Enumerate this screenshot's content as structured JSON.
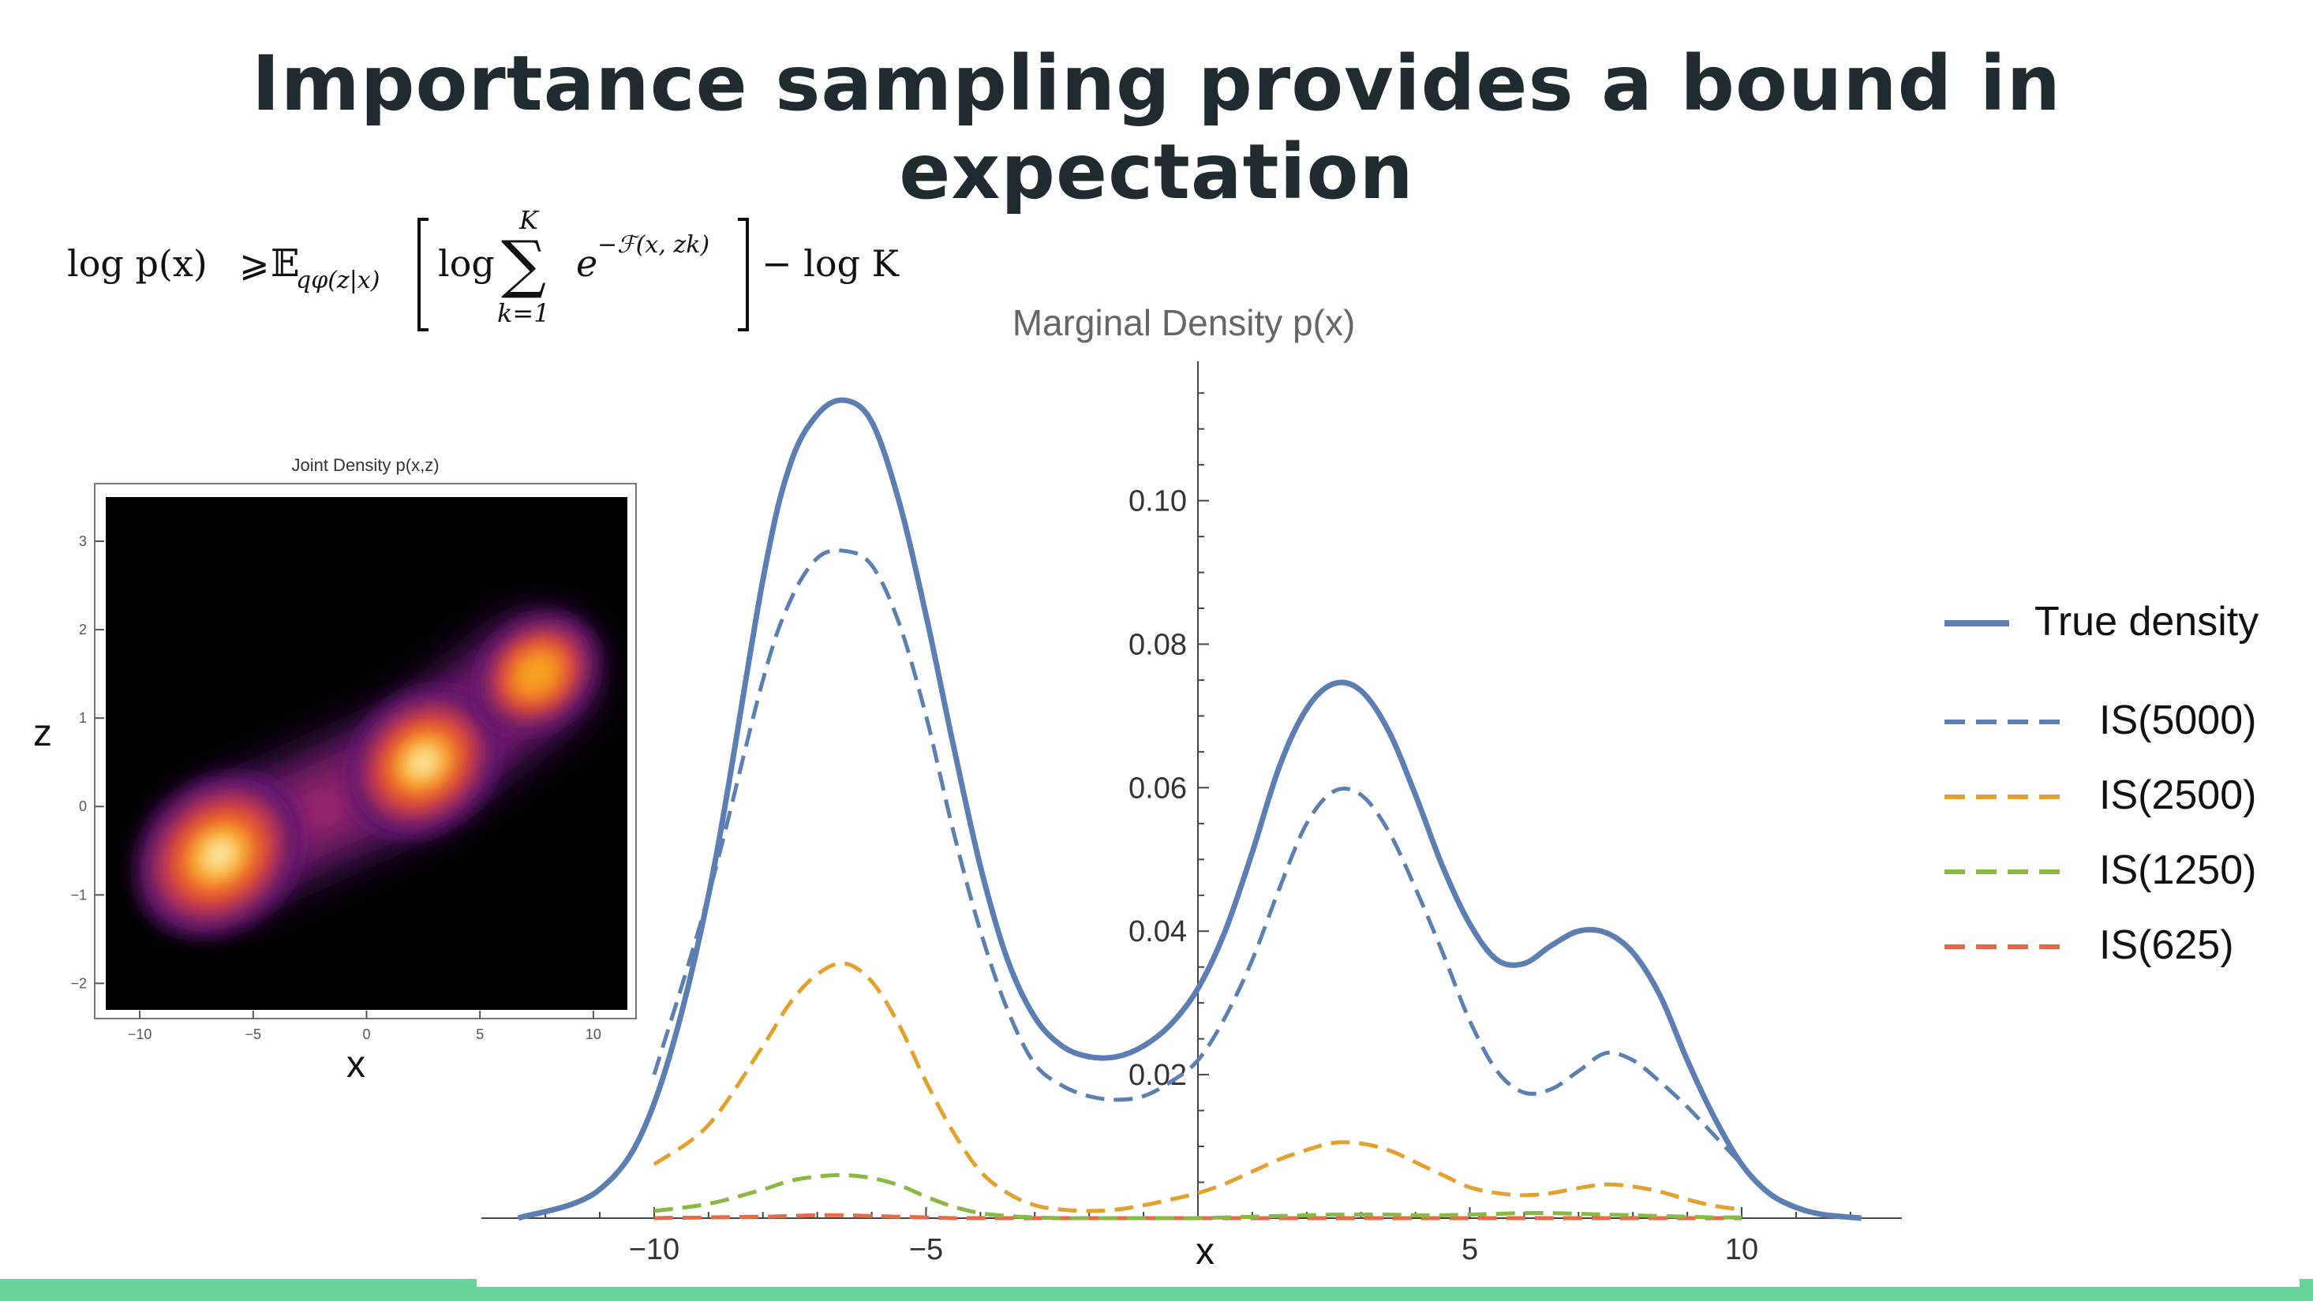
{
  "slide": {
    "title": "Importance sampling provides a bound in expectation",
    "accent_color": "#67d49a"
  },
  "formula": {
    "lhs": "log p(x)",
    "relation": "⩾",
    "expectation": "𝔼",
    "expectation_subscript": "qφ(z|x)",
    "log": "log",
    "sum_upper": "K",
    "sum_lower": "k=1",
    "exp_base": "e",
    "exp_power": "−ℱ(x, zk)",
    "minus_term": "− log K"
  },
  "chart_data": [
    {
      "type": "heatmap",
      "title": "Joint Density p(x,z)",
      "xlabel": "x",
      "ylabel": "z",
      "xlim": [
        -11.5,
        11.5
      ],
      "ylim": [
        -2.3,
        3.5
      ],
      "xticks": [
        -10,
        -5,
        0,
        5,
        10
      ],
      "yticks": [
        -2,
        -1,
        0,
        1,
        2,
        3
      ],
      "colormap": "inferno",
      "modes": [
        {
          "x": -6.5,
          "z": -0.55,
          "weight": 1.0
        },
        {
          "x": 2.5,
          "z": 0.5,
          "weight": 0.85
        },
        {
          "x": 7.5,
          "z": 1.5,
          "weight": 0.55
        }
      ]
    },
    {
      "type": "line",
      "title": "Marginal Density p(x)",
      "xlabel": "x",
      "ylabel": "",
      "xlim": [
        -12.8,
        12.8
      ],
      "ylim": [
        0,
        0.117
      ],
      "xticks": [
        -10,
        -5,
        5,
        10
      ],
      "yticks": [
        0.02,
        0.04,
        0.06,
        0.08,
        0.1
      ],
      "ytick_labels": [
        "0.02",
        "0.04",
        "0.06",
        "0.08",
        "0.10"
      ],
      "x": [
        -12.5,
        -11,
        -10,
        -9,
        -8,
        -7.5,
        -7,
        -6.5,
        -6,
        -5.5,
        -5,
        -4.5,
        -4,
        -3.5,
        -3,
        -2.5,
        -2,
        -1.5,
        -1,
        -0.5,
        0,
        0.5,
        1,
        1.5,
        2,
        2.5,
        3,
        3.5,
        4,
        4.5,
        5,
        5.5,
        6,
        6.5,
        7,
        7.5,
        8,
        8.5,
        9,
        9.5,
        10,
        10.5,
        11,
        11.5,
        12.2
      ],
      "series": [
        {
          "name": "True density",
          "color": "#5b7fb3",
          "dash": "solid",
          "width": 7,
          "values": [
            0.0,
            0.004,
            0.016,
            0.045,
            0.089,
            0.105,
            0.112,
            0.114,
            0.111,
            0.1,
            0.084,
            0.066,
            0.049,
            0.036,
            0.028,
            0.024,
            0.0225,
            0.0225,
            0.024,
            0.027,
            0.032,
            0.04,
            0.051,
            0.063,
            0.071,
            0.0745,
            0.0735,
            0.068,
            0.059,
            0.049,
            0.041,
            0.036,
            0.0355,
            0.038,
            0.04,
            0.0398,
            0.037,
            0.031,
            0.022,
            0.014,
            0.0075,
            0.0035,
            0.0015,
            0.0005,
            0.0
          ]
        },
        {
          "name": "IS(5000)",
          "color": "#5b7fb3",
          "dash": "dashed",
          "width": 5,
          "values": [
            null,
            null,
            0.02,
            0.045,
            0.075,
            0.086,
            0.092,
            0.093,
            0.091,
            0.083,
            0.07,
            0.054,
            0.04,
            0.029,
            0.0215,
            0.0185,
            0.017,
            0.0165,
            0.017,
            0.019,
            0.022,
            0.028,
            0.036,
            0.046,
            0.055,
            0.0595,
            0.059,
            0.054,
            0.046,
            0.037,
            0.0275,
            0.0205,
            0.0175,
            0.018,
            0.0205,
            0.023,
            0.022,
            0.019,
            0.0155,
            0.0115,
            0.0075,
            null,
            null,
            null,
            null
          ]
        },
        {
          "name": "IS(2500)",
          "color": "#e4a02c",
          "dash": "dashed",
          "width": 5,
          "values": [
            null,
            null,
            0.0075,
            0.013,
            0.024,
            0.03,
            0.034,
            0.0355,
            0.033,
            0.027,
            0.019,
            0.012,
            0.0065,
            0.0035,
            0.0018,
            0.0012,
            0.001,
            0.0012,
            0.0018,
            0.0026,
            0.0035,
            0.0048,
            0.0065,
            0.0082,
            0.0095,
            0.0105,
            0.0104,
            0.0095,
            0.0078,
            0.006,
            0.0043,
            0.0035,
            0.0032,
            0.0035,
            0.0042,
            0.0047,
            0.0044,
            0.0037,
            0.0026,
            0.0017,
            0.0012,
            null,
            null,
            null,
            null
          ]
        },
        {
          "name": "IS(1250)",
          "color": "#8ab843",
          "dash": "dashed",
          "width": 5,
          "values": [
            null,
            null,
            0.001,
            0.002,
            0.004,
            0.0052,
            0.0058,
            0.006,
            0.0056,
            0.0046,
            0.003,
            0.0016,
            0.0007,
            0.0003,
            0.0001,
            0.0,
            0.0,
            0.0,
            0.0,
            0.0,
            0.0,
            0.0001,
            0.0002,
            0.0003,
            0.0004,
            0.0005,
            0.0005,
            0.0005,
            0.0004,
            0.0004,
            0.0005,
            0.0006,
            0.0007,
            0.0007,
            0.0006,
            0.0005,
            0.0004,
            0.0003,
            0.0002,
            0.0001,
            0.0001,
            null,
            null,
            null,
            null
          ]
        },
        {
          "name": "IS(625)",
          "color": "#e56a45",
          "dash": "dashed",
          "width": 5,
          "values": [
            null,
            null,
            0.0,
            0.0001,
            0.0002,
            0.0003,
            0.0004,
            0.0004,
            0.0003,
            0.0002,
            0.0001,
            0.0,
            0.0,
            0.0,
            0.0,
            0.0,
            0.0,
            0.0,
            0.0,
            0.0,
            0.0,
            0.0,
            0.0,
            0.0,
            0.0,
            0.0,
            0.0,
            0.0,
            0.0,
            0.0,
            0.0,
            0.0,
            0.0,
            0.0,
            0.0,
            0.0,
            0.0,
            0.0,
            0.0,
            0.0,
            0.0,
            null,
            null,
            null,
            null
          ]
        }
      ]
    }
  ]
}
